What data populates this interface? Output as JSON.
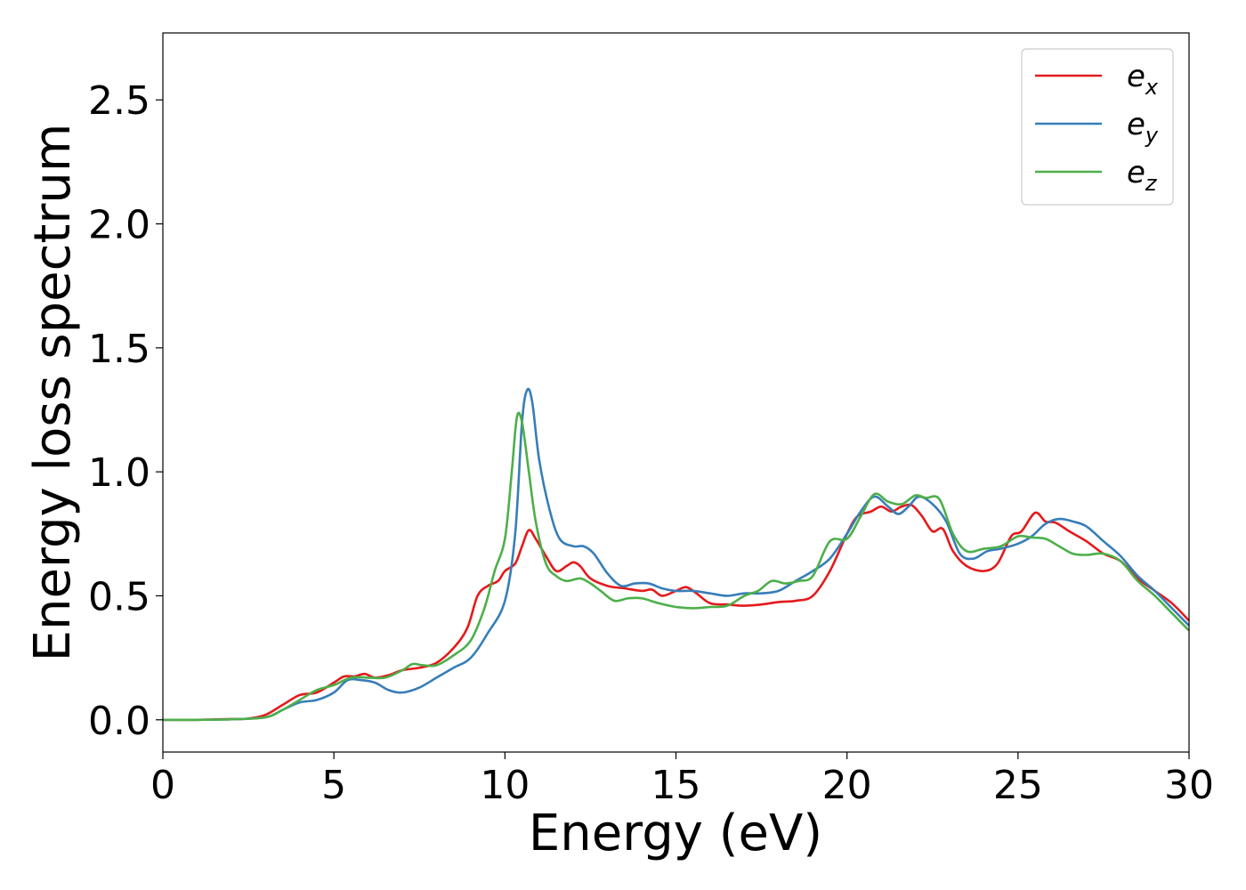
{
  "chart_data": {
    "type": "line",
    "title": "",
    "xlabel": "Energy (eV)",
    "ylabel": "Energy loss spectrum",
    "xlim": [
      0,
      30
    ],
    "ylim": [
      -0.13,
      2.77
    ],
    "xticks": [
      0,
      5,
      10,
      15,
      20,
      25,
      30
    ],
    "xtick_labels": [
      "0",
      "5",
      "10",
      "15",
      "20",
      "25",
      "30"
    ],
    "yticks": [
      0.0,
      0.5,
      1.0,
      1.5,
      2.0,
      2.5
    ],
    "ytick_labels": [
      "0.0",
      "0.5",
      "1.0",
      "1.5",
      "2.0",
      "2.5"
    ],
    "grid": false,
    "legend_position": "top-right",
    "series": [
      {
        "name": "e_x",
        "label_base": "e",
        "label_sub": "x",
        "color": "#e41a1c",
        "points": [
          [
            0,
            0
          ],
          [
            1,
            0
          ],
          [
            2,
            0.003
          ],
          [
            2.5,
            0.005
          ],
          [
            3,
            0.02
          ],
          [
            3.5,
            0.06
          ],
          [
            4,
            0.1
          ],
          [
            4.5,
            0.11
          ],
          [
            5,
            0.15
          ],
          [
            5.3,
            0.175
          ],
          [
            5.6,
            0.175
          ],
          [
            5.9,
            0.185
          ],
          [
            6.2,
            0.17
          ],
          [
            6.6,
            0.18
          ],
          [
            7,
            0.2
          ],
          [
            7.5,
            0.21
          ],
          [
            8,
            0.23
          ],
          [
            8.5,
            0.29
          ],
          [
            8.9,
            0.37
          ],
          [
            9.2,
            0.5
          ],
          [
            9.5,
            0.54
          ],
          [
            9.8,
            0.56
          ],
          [
            10,
            0.6
          ],
          [
            10.3,
            0.63
          ],
          [
            10.5,
            0.7
          ],
          [
            10.7,
            0.765
          ],
          [
            10.9,
            0.73
          ],
          [
            11.2,
            0.66
          ],
          [
            11.5,
            0.6
          ],
          [
            11.8,
            0.62
          ],
          [
            12.0,
            0.635
          ],
          [
            12.2,
            0.62
          ],
          [
            12.5,
            0.57
          ],
          [
            13,
            0.54
          ],
          [
            13.5,
            0.53
          ],
          [
            14,
            0.52
          ],
          [
            14.3,
            0.525
          ],
          [
            14.6,
            0.5
          ],
          [
            15,
            0.52
          ],
          [
            15.3,
            0.535
          ],
          [
            15.6,
            0.51
          ],
          [
            16,
            0.47
          ],
          [
            16.5,
            0.465
          ],
          [
            17,
            0.46
          ],
          [
            17.5,
            0.465
          ],
          [
            18,
            0.475
          ],
          [
            18.5,
            0.48
          ],
          [
            19,
            0.5
          ],
          [
            19.5,
            0.6
          ],
          [
            20,
            0.75
          ],
          [
            20.3,
            0.82
          ],
          [
            20.7,
            0.84
          ],
          [
            21,
            0.86
          ],
          [
            21.3,
            0.84
          ],
          [
            21.6,
            0.86
          ],
          [
            21.9,
            0.865
          ],
          [
            22.2,
            0.82
          ],
          [
            22.5,
            0.76
          ],
          [
            22.8,
            0.77
          ],
          [
            23.1,
            0.68
          ],
          [
            23.5,
            0.62
          ],
          [
            24,
            0.6
          ],
          [
            24.4,
            0.63
          ],
          [
            24.8,
            0.74
          ],
          [
            25.1,
            0.76
          ],
          [
            25.5,
            0.835
          ],
          [
            25.8,
            0.8
          ],
          [
            26.1,
            0.795
          ],
          [
            26.5,
            0.76
          ],
          [
            27,
            0.72
          ],
          [
            27.5,
            0.67
          ],
          [
            28,
            0.64
          ],
          [
            28.5,
            0.57
          ],
          [
            29,
            0.52
          ],
          [
            29.5,
            0.47
          ],
          [
            30,
            0.4
          ]
        ]
      },
      {
        "name": "e_y",
        "label_base": "e",
        "label_sub": "y",
        "color": "#377eb8",
        "points": [
          [
            0,
            0
          ],
          [
            1,
            0
          ],
          [
            2,
            0.002
          ],
          [
            3,
            0.01
          ],
          [
            3.5,
            0.04
          ],
          [
            4,
            0.07
          ],
          [
            4.5,
            0.08
          ],
          [
            5,
            0.11
          ],
          [
            5.4,
            0.16
          ],
          [
            5.8,
            0.16
          ],
          [
            6.2,
            0.15
          ],
          [
            6.6,
            0.12
          ],
          [
            7,
            0.11
          ],
          [
            7.5,
            0.13
          ],
          [
            8,
            0.17
          ],
          [
            8.5,
            0.21
          ],
          [
            9,
            0.25
          ],
          [
            9.5,
            0.35
          ],
          [
            10,
            0.48
          ],
          [
            10.3,
            0.75
          ],
          [
            10.5,
            1.2
          ],
          [
            10.65,
            1.33
          ],
          [
            10.8,
            1.28
          ],
          [
            11,
            1.05
          ],
          [
            11.3,
            0.85
          ],
          [
            11.6,
            0.73
          ],
          [
            12,
            0.7
          ],
          [
            12.3,
            0.7
          ],
          [
            12.6,
            0.67
          ],
          [
            13,
            0.59
          ],
          [
            13.4,
            0.54
          ],
          [
            13.8,
            0.55
          ],
          [
            14.2,
            0.55
          ],
          [
            14.6,
            0.53
          ],
          [
            15,
            0.52
          ],
          [
            15.5,
            0.52
          ],
          [
            16,
            0.51
          ],
          [
            16.5,
            0.5
          ],
          [
            17,
            0.51
          ],
          [
            17.5,
            0.51
          ],
          [
            18,
            0.52
          ],
          [
            18.5,
            0.56
          ],
          [
            19,
            0.6
          ],
          [
            19.5,
            0.65
          ],
          [
            20,
            0.75
          ],
          [
            20.4,
            0.84
          ],
          [
            20.8,
            0.9
          ],
          [
            21.2,
            0.86
          ],
          [
            21.5,
            0.83
          ],
          [
            21.8,
            0.86
          ],
          [
            22.1,
            0.9
          ],
          [
            22.5,
            0.87
          ],
          [
            22.9,
            0.8
          ],
          [
            23.3,
            0.67
          ],
          [
            23.7,
            0.65
          ],
          [
            24.1,
            0.68
          ],
          [
            24.5,
            0.69
          ],
          [
            25,
            0.71
          ],
          [
            25.4,
            0.74
          ],
          [
            25.8,
            0.79
          ],
          [
            26.2,
            0.81
          ],
          [
            26.6,
            0.8
          ],
          [
            27,
            0.78
          ],
          [
            27.5,
            0.72
          ],
          [
            28,
            0.66
          ],
          [
            28.5,
            0.58
          ],
          [
            29,
            0.52
          ],
          [
            29.5,
            0.45
          ],
          [
            30,
            0.38
          ]
        ]
      },
      {
        "name": "e_z",
        "label_base": "e",
        "label_sub": "z",
        "color": "#4daf4a",
        "points": [
          [
            0,
            0
          ],
          [
            1,
            0
          ],
          [
            2,
            0.002
          ],
          [
            3,
            0.01
          ],
          [
            3.5,
            0.04
          ],
          [
            4,
            0.08
          ],
          [
            4.5,
            0.12
          ],
          [
            5,
            0.14
          ],
          [
            5.5,
            0.17
          ],
          [
            6,
            0.17
          ],
          [
            6.5,
            0.17
          ],
          [
            7,
            0.2
          ],
          [
            7.3,
            0.225
          ],
          [
            7.6,
            0.22
          ],
          [
            8,
            0.22
          ],
          [
            8.5,
            0.26
          ],
          [
            9,
            0.32
          ],
          [
            9.4,
            0.45
          ],
          [
            9.7,
            0.6
          ],
          [
            10,
            0.73
          ],
          [
            10.2,
            1.0
          ],
          [
            10.35,
            1.22
          ],
          [
            10.5,
            1.2
          ],
          [
            10.7,
            1.0
          ],
          [
            10.9,
            0.8
          ],
          [
            11.2,
            0.63
          ],
          [
            11.5,
            0.58
          ],
          [
            11.8,
            0.56
          ],
          [
            12.2,
            0.57
          ],
          [
            12.5,
            0.55
          ],
          [
            12.8,
            0.52
          ],
          [
            13.2,
            0.48
          ],
          [
            13.6,
            0.49
          ],
          [
            14,
            0.49
          ],
          [
            14.5,
            0.47
          ],
          [
            15,
            0.455
          ],
          [
            15.5,
            0.45
          ],
          [
            16,
            0.455
          ],
          [
            16.5,
            0.46
          ],
          [
            17,
            0.5
          ],
          [
            17.4,
            0.52
          ],
          [
            17.8,
            0.56
          ],
          [
            18.2,
            0.55
          ],
          [
            18.6,
            0.56
          ],
          [
            19,
            0.58
          ],
          [
            19.5,
            0.72
          ],
          [
            20,
            0.73
          ],
          [
            20.4,
            0.82
          ],
          [
            20.8,
            0.91
          ],
          [
            21.2,
            0.88
          ],
          [
            21.6,
            0.87
          ],
          [
            22,
            0.905
          ],
          [
            22.3,
            0.895
          ],
          [
            22.7,
            0.89
          ],
          [
            23.1,
            0.75
          ],
          [
            23.5,
            0.68
          ],
          [
            24,
            0.69
          ],
          [
            24.5,
            0.7
          ],
          [
            25,
            0.74
          ],
          [
            25.4,
            0.735
          ],
          [
            25.8,
            0.73
          ],
          [
            26.2,
            0.7
          ],
          [
            26.6,
            0.67
          ],
          [
            27,
            0.665
          ],
          [
            27.5,
            0.67
          ],
          [
            28,
            0.64
          ],
          [
            28.5,
            0.56
          ],
          [
            29,
            0.5
          ],
          [
            29.5,
            0.43
          ],
          [
            30,
            0.36
          ]
        ]
      }
    ]
  }
}
